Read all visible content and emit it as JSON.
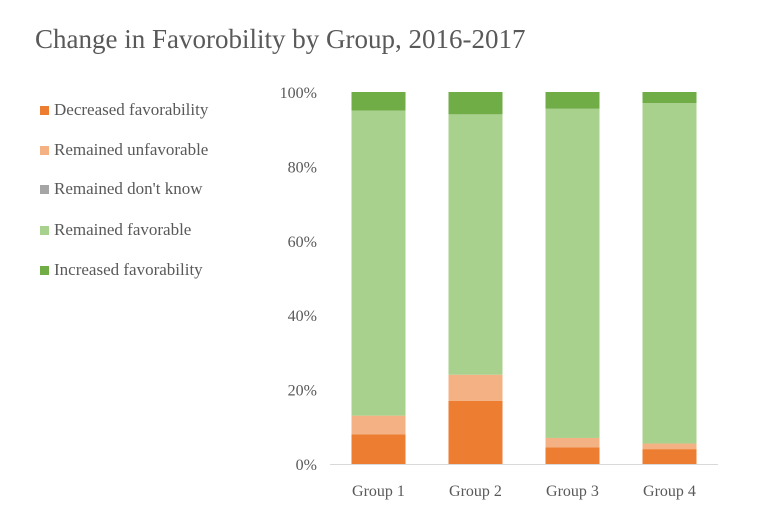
{
  "chart_data": {
    "type": "bar",
    "stacked": true,
    "percent": true,
    "title": "Change in Favorobility by Group, 2016-2017",
    "categories": [
      "Group 1",
      "Group 2",
      "Group 3",
      "Group 4"
    ],
    "series": [
      {
        "name": "Decreased favorability",
        "color": "#ED7D31",
        "values": [
          8,
          17,
          4.5,
          4
        ]
      },
      {
        "name": "Remained unfavorable",
        "color": "#F4B183",
        "values": [
          5,
          7,
          2.5,
          1.5
        ]
      },
      {
        "name": "Remained don't know",
        "color": "#A5A5A5",
        "values": [
          0,
          0,
          0,
          0
        ]
      },
      {
        "name": "Remained favorable",
        "color": "#A9D18E",
        "values": [
          82,
          70,
          88.5,
          91.5
        ]
      },
      {
        "name": "Increased favorability",
        "color": "#70AD47",
        "values": [
          5,
          6,
          4.5,
          3
        ]
      }
    ],
    "yticks": [
      "0%",
      "20%",
      "40%",
      "60%",
      "80%",
      "100%"
    ],
    "ylim": [
      0,
      100
    ],
    "xlabel": "",
    "ylabel": "",
    "legend": "left",
    "grid": false
  }
}
